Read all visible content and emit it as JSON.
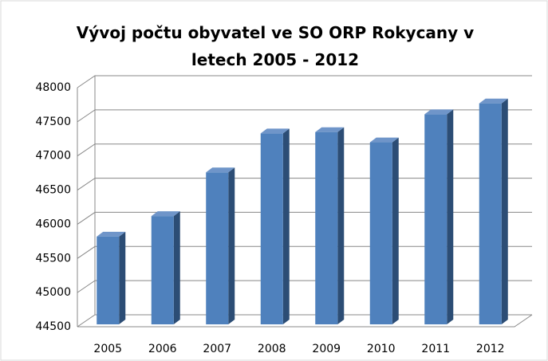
{
  "chart_data": {
    "type": "bar",
    "title": "Vývoj počtu obyvatel ve SO ORP Rokycany v letech 2005 - 2012",
    "categories": [
      "2005",
      "2006",
      "2007",
      "2008",
      "2009",
      "2010",
      "2011",
      "2012"
    ],
    "values": [
      45820,
      46120,
      46760,
      47330,
      47350,
      47200,
      47610,
      47770
    ],
    "color": "#4f81bd",
    "ylim": [
      44500,
      48000
    ],
    "yticks": [
      44500,
      45000,
      45500,
      46000,
      46500,
      47000,
      47500,
      48000
    ],
    "grid": true
  }
}
